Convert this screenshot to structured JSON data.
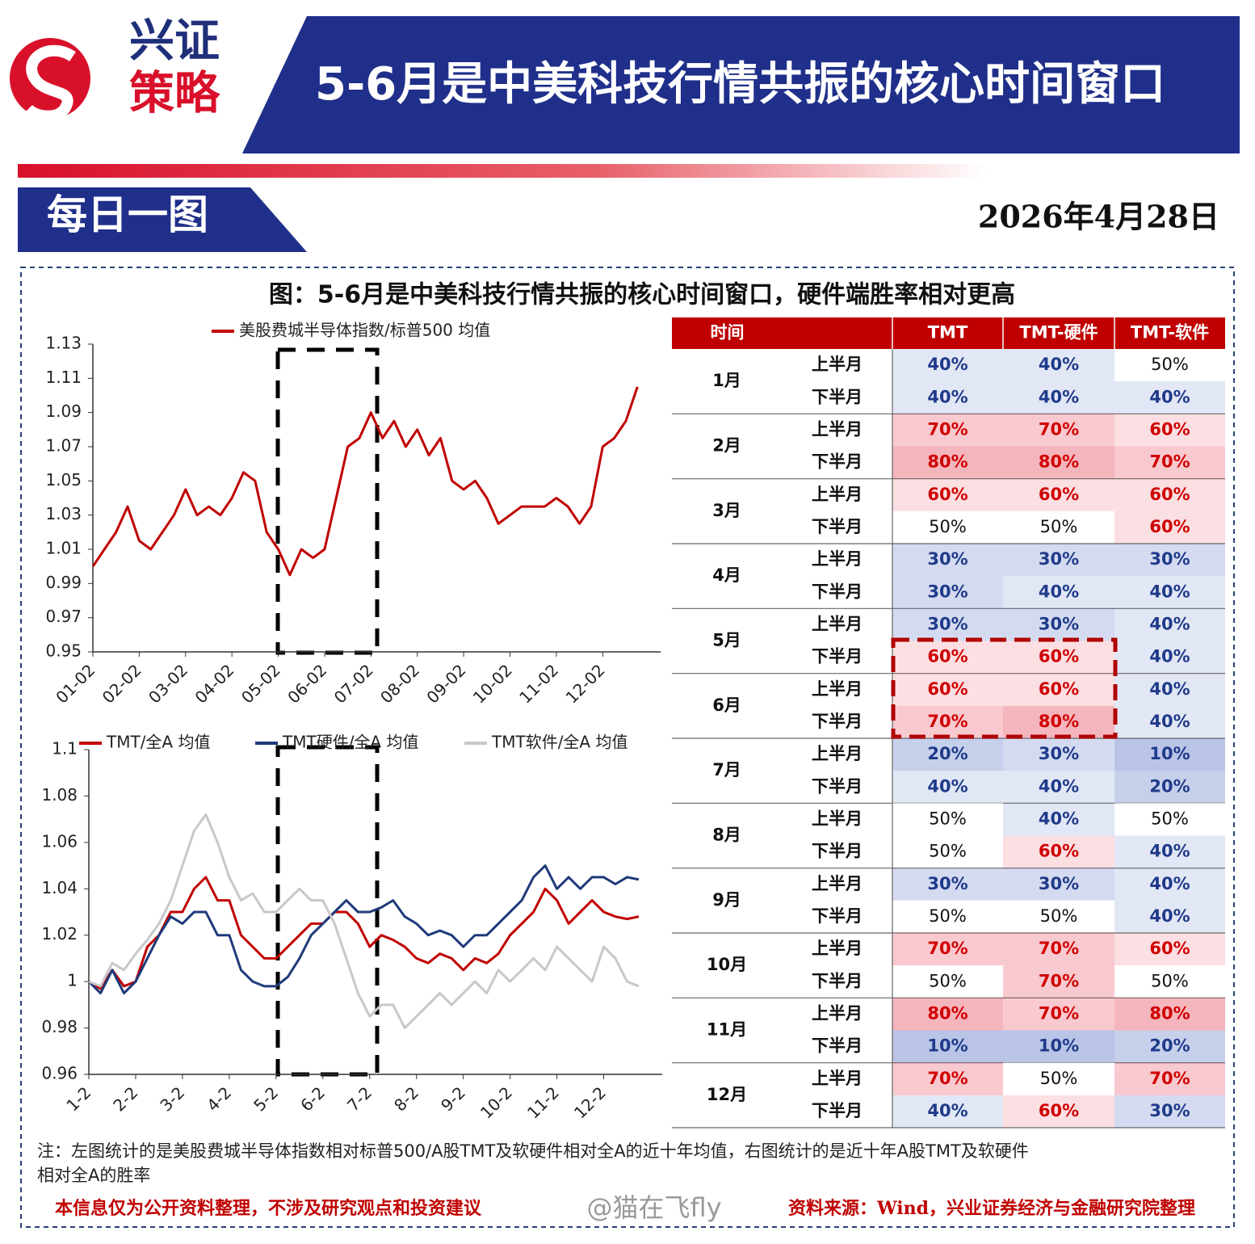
{
  "header": {
    "brand_line1": "兴证",
    "brand_line2": "策略",
    "title": "5-6月是中美科技行情共振的核心时间窗口",
    "section": "每日一图",
    "date": "2026年4月28日"
  },
  "figure_title": "图：5-6月是中美科技行情共振的核心时间窗口，硬件端胜率相对更高",
  "chart_data": [
    {
      "type": "line",
      "categories": [
        "01-02",
        null,
        null,
        null,
        "02-02",
        null,
        null,
        null,
        "03-02",
        null,
        null,
        null,
        "04-02",
        null,
        null,
        null,
        "05-02",
        null,
        null,
        null,
        "06-02",
        null,
        null,
        null,
        "07-02",
        null,
        null,
        null,
        "08-02",
        null,
        null,
        null,
        "09-02",
        null,
        null,
        null,
        "10-02",
        null,
        null,
        null,
        "11-02",
        null,
        null,
        null,
        "12-02",
        null,
        null,
        null
      ],
      "series": [
        {
          "name": "美股费城半导体指数/标普500 均值",
          "color": "#c00000",
          "values": [
            1.0,
            1.01,
            1.02,
            1.035,
            1.015,
            1.01,
            1.02,
            1.03,
            1.045,
            1.03,
            1.035,
            1.03,
            1.04,
            1.055,
            1.05,
            1.02,
            1.01,
            0.995,
            1.01,
            1.005,
            1.01,
            1.04,
            1.07,
            1.075,
            1.09,
            1.075,
            1.085,
            1.07,
            1.08,
            1.065,
            1.075,
            1.05,
            1.045,
            1.05,
            1.04,
            1.025,
            1.03,
            1.035,
            1.035,
            1.035,
            1.04,
            1.035,
            1.025,
            1.035,
            1.07,
            1.075,
            1.085,
            1.105
          ]
        }
      ],
      "ylim": [
        0.95,
        1.13
      ],
      "yticks": [
        0.95,
        0.97,
        0.99,
        1.01,
        1.03,
        1.05,
        1.07,
        1.09,
        1.11,
        1.13
      ]
    },
    {
      "type": "line",
      "categories": [
        "1-2",
        null,
        null,
        null,
        "2-2",
        null,
        null,
        null,
        "3-2",
        null,
        null,
        null,
        "4-2",
        null,
        null,
        null,
        "5-2",
        null,
        null,
        null,
        "6-2",
        null,
        null,
        null,
        "7-2",
        null,
        null,
        null,
        "8-2",
        null,
        null,
        null,
        "9-2",
        null,
        null,
        null,
        "10-2",
        null,
        null,
        null,
        "11-2",
        null,
        null,
        null,
        "12-2",
        null,
        null,
        null
      ],
      "series": [
        {
          "name": "TMT/全A 均值",
          "color": "#c00000",
          "values": [
            1.0,
            0.997,
            1.005,
            0.998,
            1.0,
            1.015,
            1.02,
            1.03,
            1.03,
            1.04,
            1.045,
            1.035,
            1.035,
            1.02,
            1.015,
            1.01,
            1.01,
            1.015,
            1.02,
            1.025,
            1.025,
            1.03,
            1.03,
            1.025,
            1.015,
            1.02,
            1.018,
            1.015,
            1.01,
            1.008,
            1.012,
            1.01,
            1.005,
            1.01,
            1.008,
            1.012,
            1.02,
            1.025,
            1.03,
            1.04,
            1.035,
            1.025,
            1.03,
            1.035,
            1.03,
            1.028,
            1.027,
            1.028
          ]
        },
        {
          "name": "TMT硬件/全A 均值",
          "color": "#1f3a7a",
          "values": [
            1.0,
            0.995,
            1.005,
            0.995,
            1.0,
            1.01,
            1.02,
            1.028,
            1.025,
            1.03,
            1.03,
            1.02,
            1.02,
            1.005,
            1.0,
            0.998,
            0.998,
            1.002,
            1.01,
            1.02,
            1.025,
            1.03,
            1.035,
            1.03,
            1.03,
            1.032,
            1.035,
            1.028,
            1.025,
            1.02,
            1.022,
            1.02,
            1.015,
            1.02,
            1.02,
            1.025,
            1.03,
            1.035,
            1.045,
            1.05,
            1.04,
            1.045,
            1.04,
            1.045,
            1.045,
            1.042,
            1.045,
            1.044
          ]
        },
        {
          "name": "TMT软件/全A 均值",
          "color": "#c8c8c8",
          "values": [
            1.0,
            0.998,
            1.008,
            1.005,
            1.012,
            1.018,
            1.025,
            1.035,
            1.05,
            1.065,
            1.072,
            1.06,
            1.045,
            1.035,
            1.038,
            1.03,
            1.03,
            1.035,
            1.04,
            1.035,
            1.035,
            1.025,
            1.01,
            0.995,
            0.985,
            0.99,
            0.99,
            0.98,
            0.985,
            0.99,
            0.995,
            0.99,
            0.995,
            1.0,
            0.995,
            1.005,
            1.0,
            1.005,
            1.01,
            1.005,
            1.015,
            1.01,
            1.005,
            1.0,
            1.015,
            1.01,
            1.0,
            0.998
          ]
        }
      ],
      "ylim": [
        0.96,
        1.1
      ],
      "yticks": [
        0.96,
        0.98,
        1,
        1.02,
        1.04,
        1.06,
        1.08,
        1.1
      ]
    }
  ],
  "table": {
    "headers": [
      "时间",
      "TMT",
      "TMT-硬件",
      "TMT-软件"
    ],
    "rows": [
      {
        "month": "1月",
        "halves": [
          {
            "half": "上半月",
            "cells": [
              "40%",
              "40%",
              "50%"
            ]
          },
          {
            "half": "下半月",
            "cells": [
              "40%",
              "40%",
              "40%"
            ]
          }
        ]
      },
      {
        "month": "2月",
        "halves": [
          {
            "half": "上半月",
            "cells": [
              "70%",
              "70%",
              "60%"
            ]
          },
          {
            "half": "下半月",
            "cells": [
              "80%",
              "80%",
              "70%"
            ]
          }
        ]
      },
      {
        "month": "3月",
        "halves": [
          {
            "half": "上半月",
            "cells": [
              "60%",
              "60%",
              "60%"
            ]
          },
          {
            "half": "下半月",
            "cells": [
              "50%",
              "50%",
              "60%"
            ]
          }
        ]
      },
      {
        "month": "4月",
        "halves": [
          {
            "half": "上半月",
            "cells": [
              "30%",
              "30%",
              "30%"
            ]
          },
          {
            "half": "下半月",
            "cells": [
              "30%",
              "40%",
              "40%"
            ]
          }
        ]
      },
      {
        "month": "5月",
        "halves": [
          {
            "half": "上半月",
            "cells": [
              "30%",
              "30%",
              "40%"
            ]
          },
          {
            "half": "下半月",
            "cells": [
              "60%",
              "60%",
              "40%"
            ]
          }
        ]
      },
      {
        "month": "6月",
        "halves": [
          {
            "half": "上半月",
            "cells": [
              "60%",
              "60%",
              "40%"
            ]
          },
          {
            "half": "下半月",
            "cells": [
              "70%",
              "80%",
              "40%"
            ]
          }
        ]
      },
      {
        "month": "7月",
        "halves": [
          {
            "half": "上半月",
            "cells": [
              "20%",
              "30%",
              "10%"
            ]
          },
          {
            "half": "下半月",
            "cells": [
              "40%",
              "40%",
              "20%"
            ]
          }
        ]
      },
      {
        "month": "8月",
        "halves": [
          {
            "half": "上半月",
            "cells": [
              "50%",
              "40%",
              "50%"
            ]
          },
          {
            "half": "下半月",
            "cells": [
              "50%",
              "60%",
              "40%"
            ]
          }
        ]
      },
      {
        "month": "9月",
        "halves": [
          {
            "half": "上半月",
            "cells": [
              "30%",
              "30%",
              "40%"
            ]
          },
          {
            "half": "下半月",
            "cells": [
              "50%",
              "50%",
              "40%"
            ]
          }
        ]
      },
      {
        "month": "10月",
        "halves": [
          {
            "half": "上半月",
            "cells": [
              "70%",
              "70%",
              "60%"
            ]
          },
          {
            "half": "下半月",
            "cells": [
              "50%",
              "70%",
              "50%"
            ]
          }
        ]
      },
      {
        "month": "11月",
        "halves": [
          {
            "half": "上半月",
            "cells": [
              "80%",
              "70%",
              "80%"
            ]
          },
          {
            "half": "下半月",
            "cells": [
              "10%",
              "10%",
              "20%"
            ]
          }
        ]
      },
      {
        "month": "12月",
        "halves": [
          {
            "half": "上半月",
            "cells": [
              "70%",
              "50%",
              "70%"
            ]
          },
          {
            "half": "下半月",
            "cells": [
              "40%",
              "60%",
              "30%"
            ]
          }
        ]
      }
    ]
  },
  "note_line1": "注：左图统计的是美股费城半导体指数相对标普500/A股TMT及软硬件相对全A的近十年均值，右图统计的是近十年A股TMT及软硬件",
  "note_line2": "相对全A的胜率",
  "disclaimer": "本信息仅为公开资料整理，不涉及研究观点和投资建议",
  "watermark": "@猫在飞fly",
  "source": "资料来源：Wind，兴业证券经济与金融研究院整理"
}
